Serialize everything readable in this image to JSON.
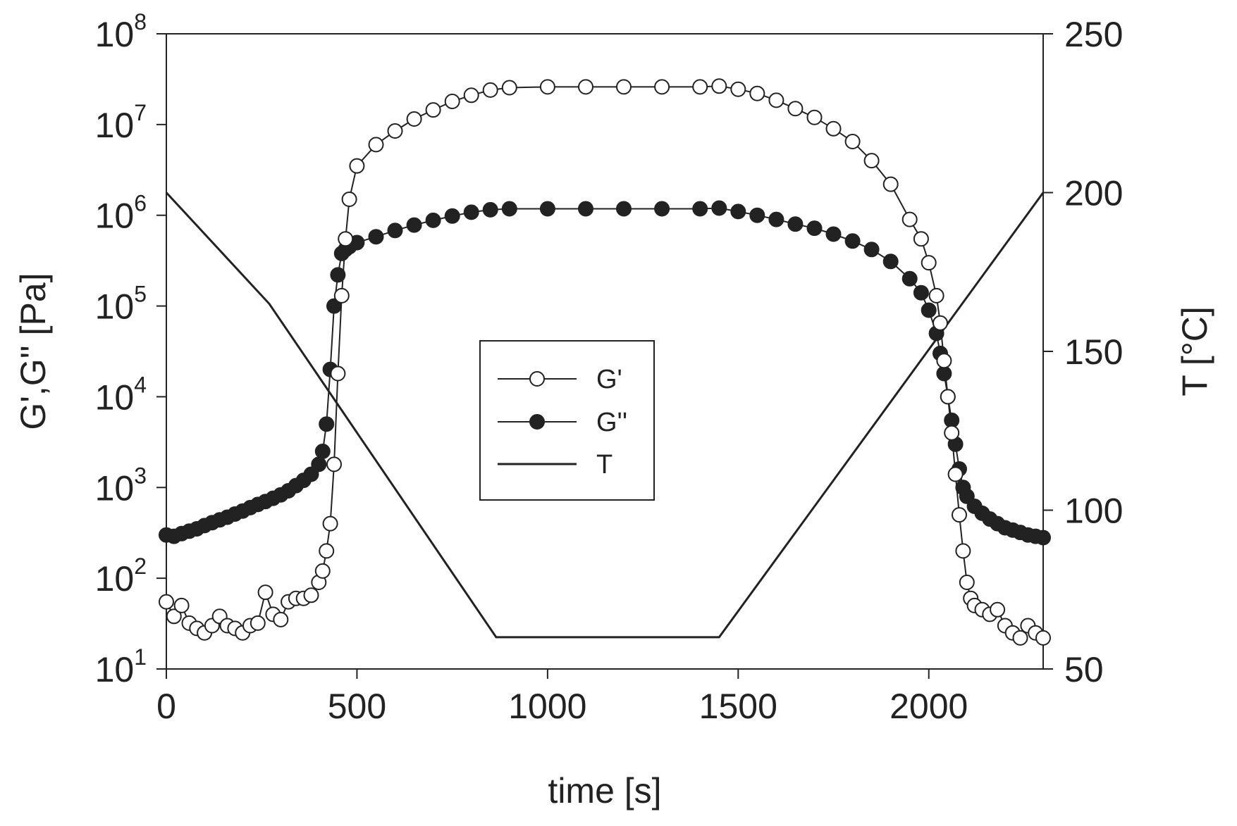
{
  "chart_data": {
    "type": "line",
    "title": "",
    "xlabel": "time [s]",
    "ylabel": "G',G'' [Pa]",
    "y2label": "T [°C]",
    "xlim": [
      0,
      2300
    ],
    "ylim": [
      10,
      100000000
    ],
    "yscale": "log",
    "y2lim": [
      50,
      250
    ],
    "xticks": [
      "0",
      "500",
      "1000",
      "1500",
      "2000"
    ],
    "yticks": [
      {
        "base": "10",
        "exp": "1"
      },
      {
        "base": "10",
        "exp": "2"
      },
      {
        "base": "10",
        "exp": "3"
      },
      {
        "base": "10",
        "exp": "4"
      },
      {
        "base": "10",
        "exp": "5"
      },
      {
        "base": "10",
        "exp": "6"
      },
      {
        "base": "10",
        "exp": "7"
      },
      {
        "base": "10",
        "exp": "8"
      }
    ],
    "y2ticks": [
      "50",
      "100",
      "150",
      "200",
      "250"
    ],
    "grid": false,
    "legend": {
      "position": "center",
      "entries": [
        "G'",
        "G''",
        "T"
      ]
    },
    "series": [
      {
        "name": "G'",
        "axis": "left",
        "marker": "open-circle",
        "x": [
          0,
          20,
          40,
          60,
          80,
          100,
          120,
          140,
          160,
          180,
          200,
          220,
          240,
          260,
          280,
          300,
          320,
          340,
          360,
          380,
          400,
          410,
          420,
          430,
          440,
          450,
          460,
          470,
          480,
          500,
          550,
          600,
          650,
          700,
          750,
          800,
          850,
          900,
          1000,
          1100,
          1200,
          1300,
          1400,
          1450,
          1500,
          1550,
          1600,
          1650,
          1700,
          1750,
          1800,
          1850,
          1900,
          1950,
          1980,
          2000,
          2020,
          2030,
          2040,
          2050,
          2060,
          2070,
          2080,
          2090,
          2100,
          2110,
          2120,
          2140,
          2160,
          2180,
          2200,
          2220,
          2240,
          2260,
          2280,
          2300
        ],
        "y": [
          55,
          38,
          50,
          32,
          28,
          25,
          30,
          38,
          30,
          28,
          25,
          30,
          32,
          70,
          40,
          35,
          55,
          60,
          60,
          65,
          90,
          120,
          200,
          400,
          1800,
          18000,
          130000,
          550000,
          1500000,
          3500000,
          6000000,
          8500000,
          11500000,
          14500000,
          18000000,
          21000000,
          24000000,
          25500000,
          26000000,
          26000000,
          26000000,
          26000000,
          26000000,
          26500000,
          24500000,
          22000000,
          18500000,
          15000000,
          12000000,
          9000000,
          6500000,
          4000000,
          2200000,
          900000,
          550000,
          300000,
          130000,
          65000,
          25000,
          10000,
          4000,
          1400,
          500,
          200,
          90,
          60,
          50,
          45,
          40,
          45,
          30,
          25,
          22,
          30,
          25,
          22
        ]
      },
      {
        "name": "G''",
        "axis": "left",
        "marker": "filled-circle",
        "x": [
          0,
          20,
          40,
          60,
          80,
          100,
          120,
          140,
          160,
          180,
          200,
          220,
          240,
          260,
          280,
          300,
          320,
          340,
          360,
          380,
          400,
          410,
          420,
          430,
          440,
          450,
          460,
          470,
          480,
          500,
          550,
          600,
          650,
          700,
          750,
          800,
          850,
          900,
          1000,
          1100,
          1200,
          1300,
          1400,
          1450,
          1500,
          1550,
          1600,
          1650,
          1700,
          1750,
          1800,
          1850,
          1900,
          1950,
          1980,
          2000,
          2020,
          2030,
          2040,
          2050,
          2060,
          2070,
          2080,
          2090,
          2100,
          2120,
          2140,
          2160,
          2180,
          2200,
          2220,
          2240,
          2260,
          2280,
          2300
        ],
        "y": [
          300,
          290,
          310,
          330,
          350,
          380,
          410,
          440,
          470,
          510,
          550,
          600,
          650,
          700,
          760,
          830,
          920,
          1050,
          1200,
          1400,
          1800,
          2500,
          5000,
          20000,
          100000,
          220000,
          380000,
          420000,
          450000,
          500000,
          580000,
          680000,
          780000,
          880000,
          980000,
          1080000,
          1150000,
          1180000,
          1180000,
          1180000,
          1180000,
          1180000,
          1180000,
          1200000,
          1100000,
          1000000,
          900000,
          800000,
          720000,
          620000,
          520000,
          420000,
          310000,
          200000,
          140000,
          90000,
          50000,
          30000,
          18000,
          10000,
          5500,
          3000,
          1600,
          1000,
          800,
          620,
          520,
          450,
          400,
          360,
          340,
          320,
          300,
          290,
          280
        ]
      },
      {
        "name": "T",
        "axis": "right",
        "marker": "none",
        "x": [
          0,
          270,
          865,
          1450,
          2300
        ],
        "y": [
          200,
          165,
          60,
          60,
          200
        ]
      }
    ]
  }
}
